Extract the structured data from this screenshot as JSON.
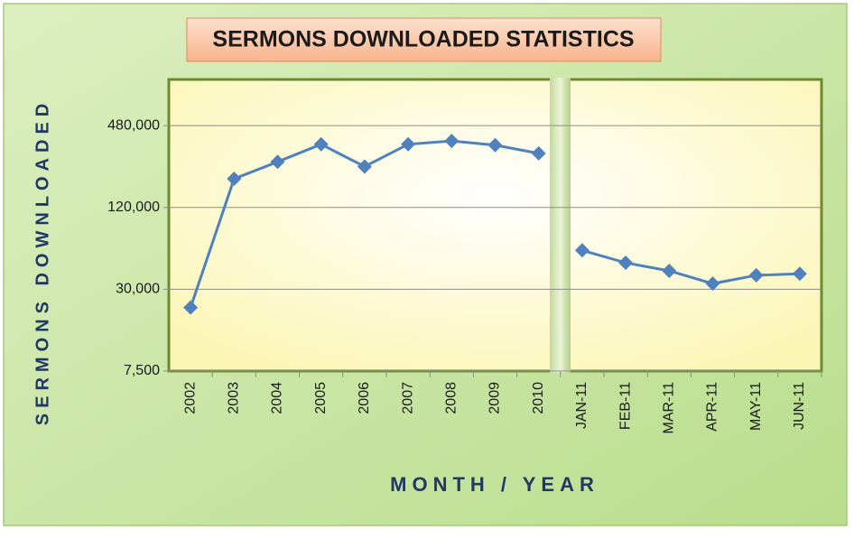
{
  "chart_data": {
    "type": "line",
    "title": "SERMONS DOWNLOADED STATISTICS",
    "x_label": "MONTH / YEAR",
    "y_label": "SERMONS DOWNLOADED",
    "categories": [
      "2002",
      "2003",
      "2004",
      "2005",
      "2006",
      "2007",
      "2008",
      "2009",
      "2010",
      "JAN-11",
      "FEB-11",
      "MAR-11",
      "APR-11",
      "MAY-11",
      "JUN-11"
    ],
    "series": [
      {
        "color": "#4f81bd",
        "values": [
          22000,
          195000,
          260000,
          350000,
          240000,
          350000,
          370000,
          345000,
          300000,
          null,
          null,
          null,
          null,
          null,
          null
        ]
      },
      {
        "color": "#4f81bd",
        "values": [
          null,
          null,
          null,
          null,
          null,
          null,
          null,
          null,
          null,
          58000,
          47000,
          41000,
          33000,
          38000,
          39000
        ]
      }
    ],
    "yscale": "log",
    "ylim": [
      7500,
      1050000
    ],
    "yticks": [
      {
        "value": 7500,
        "label": "7,500"
      },
      {
        "value": 30000,
        "label": "30,000"
      },
      {
        "value": 120000,
        "label": "120,000"
      },
      {
        "value": 480000,
        "label": "480,000"
      }
    ],
    "grid": true
  }
}
